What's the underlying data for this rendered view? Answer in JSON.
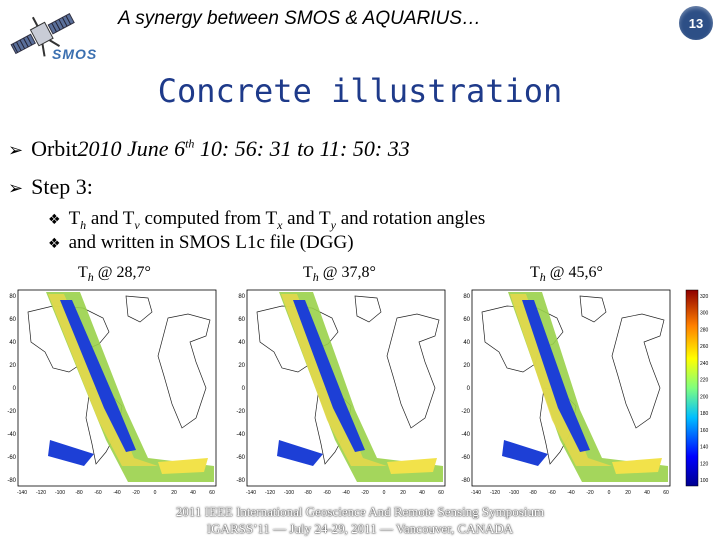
{
  "header": {
    "title": "A synergy between SMOS & AQUARIUS…",
    "logo_text": "SMOS",
    "page_number": "13"
  },
  "slide": {
    "title": "Concrete illustration",
    "bullets": [
      {
        "lead": "Orbit ",
        "date_a": "2010 June 6",
        "date_sup": "th",
        "date_b": " 10: 56: 31 to 11: 50: 33"
      },
      {
        "text": "Step 3:"
      }
    ],
    "sub_bullets": [
      {
        "p1": "T",
        "s1": "h",
        "p2": " and T",
        "s2": "v",
        "p3": " computed from T",
        "s3": "x",
        "p4": " and T",
        "s4": "y",
        "p5": " and rotation angles"
      },
      {
        "text": "and written in SMOS L1c file (DGG)"
      }
    ]
  },
  "maps": [
    {
      "caption_t": "T",
      "caption_sub": "h",
      "caption_rest": " @ 28,7°"
    },
    {
      "caption_t": "T",
      "caption_sub": "h",
      "caption_rest": " @ 37,8°"
    },
    {
      "caption_t": "T",
      "caption_sub": "h",
      "caption_rest": " @ 45,6°"
    }
  ],
  "lat_ticks": [
    "80",
    "60",
    "40",
    "20",
    "0",
    "-20",
    "-40",
    "-60",
    "-80"
  ],
  "lon_ticks": [
    "-140",
    "-120",
    "-100",
    "-80",
    "-60",
    "-40",
    "-20",
    "0",
    "20",
    "40",
    "60"
  ],
  "colorbar_ticks": [
    "320",
    "300",
    "280",
    "260",
    "240",
    "220",
    "200",
    "180",
    "160",
    "140",
    "120",
    "100"
  ],
  "footer": {
    "line1": "2011 IEEE International Geoscience And Remote Sensing Symposium",
    "line2": "IGARSS’11 — July 24-29, 2011 — Vancouver, CANADA"
  }
}
